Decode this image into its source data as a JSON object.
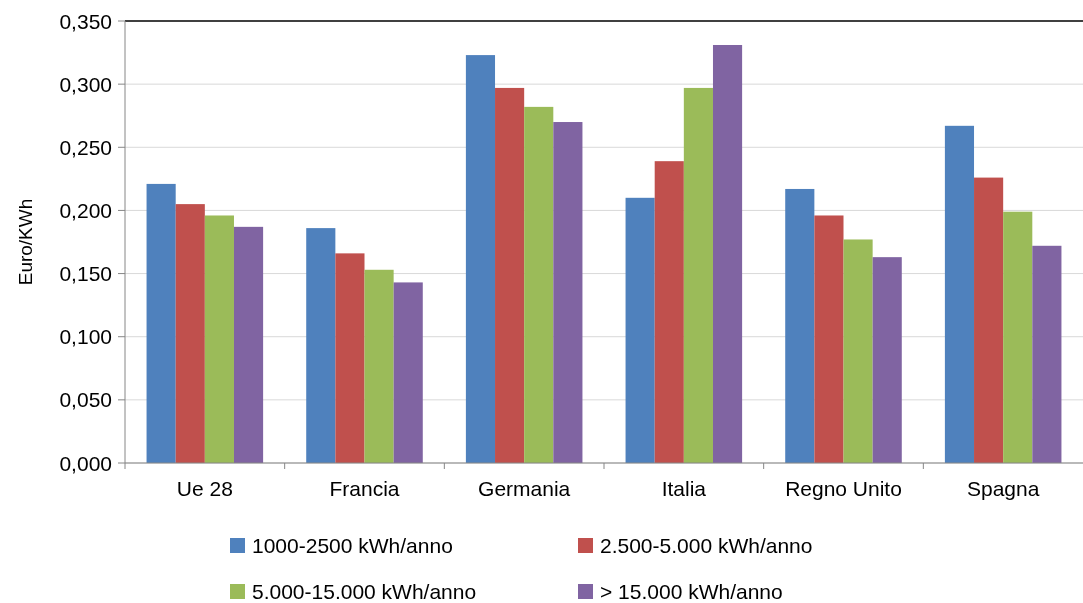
{
  "chart_data": {
    "type": "bar",
    "ylabel": "Euro/KWh",
    "categories": [
      "Ue 28",
      "Francia",
      "Germania",
      "Italia",
      "Regno Unito",
      "Spagna"
    ],
    "series": [
      {
        "name": "1000-2500 kWh/anno",
        "color": "#4f81bd",
        "values": [
          0.221,
          0.186,
          0.323,
          0.21,
          0.217,
          0.267
        ]
      },
      {
        "name": "2.500-5.000 kWh/anno",
        "color": "#c0504d",
        "values": [
          0.205,
          0.166,
          0.297,
          0.239,
          0.196,
          0.226
        ]
      },
      {
        "name": "5.000-15.000 kWh/anno",
        "color": "#9bbb59",
        "values": [
          0.196,
          0.153,
          0.282,
          0.297,
          0.177,
          0.199
        ]
      },
      {
        "name": "> 15.000 kWh/anno",
        "color": "#8064a2",
        "values": [
          0.187,
          0.143,
          0.27,
          0.331,
          0.163,
          0.172
        ]
      }
    ],
    "ylim": [
      0,
      0.35
    ],
    "yticks": [
      {
        "value": 0,
        "label": "0,000"
      },
      {
        "value": 0.05,
        "label": "0,050"
      },
      {
        "value": 0.1,
        "label": "0,100"
      },
      {
        "value": 0.15,
        "label": "0,150"
      },
      {
        "value": 0.2,
        "label": "0,200"
      },
      {
        "value": 0.25,
        "label": "0,250"
      },
      {
        "value": 0.3,
        "label": "0,300"
      },
      {
        "value": 0.35,
        "label": "0,350"
      }
    ],
    "grid": "y",
    "legend": "bottom"
  }
}
